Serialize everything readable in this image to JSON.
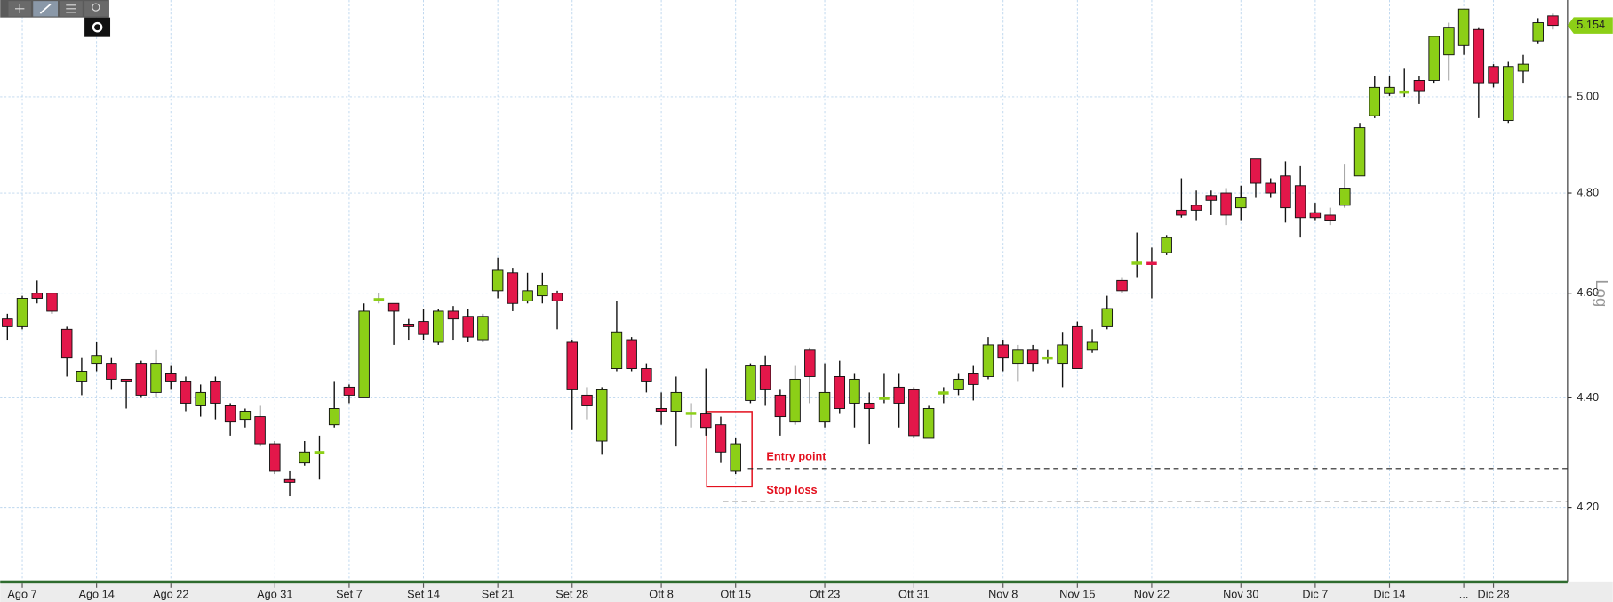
{
  "chart_data": {
    "type": "candlestick",
    "log_scale": true,
    "grid": true,
    "y_axis_label": "Log",
    "up_color": "#8ccf17",
    "down_color": "#e3174a",
    "ylim": [
      4.07,
      5.21
    ],
    "yticks": [
      {
        "value": 4.2,
        "label": "4.20"
      },
      {
        "value": 4.4,
        "label": "4.40"
      },
      {
        "value": 4.6,
        "label": "4.60"
      },
      {
        "value": 4.8,
        "label": "4.80"
      },
      {
        "value": 5.0,
        "label": "5.00"
      }
    ],
    "last_price": 5.154,
    "annotations": [
      {
        "text": "Entry point",
        "value": 4.27
      },
      {
        "text": "Stop loss",
        "value": 4.21
      }
    ],
    "categories": [
      null,
      "Ago 7",
      null,
      null,
      null,
      null,
      "Ago 14",
      null,
      null,
      null,
      null,
      "Ago 22",
      null,
      null,
      null,
      null,
      null,
      null,
      "Ago 31",
      null,
      null,
      null,
      null,
      "Set 7",
      null,
      null,
      null,
      null,
      "Set 14",
      null,
      null,
      null,
      null,
      "Set 21",
      null,
      null,
      null,
      null,
      "Set 28",
      null,
      null,
      null,
      null,
      null,
      "Ott 8",
      null,
      null,
      null,
      null,
      "Ott 15",
      null,
      null,
      null,
      null,
      null,
      "Ott 23",
      null,
      null,
      null,
      null,
      null,
      "Ott 31",
      null,
      null,
      null,
      null,
      null,
      "Nov 8",
      null,
      null,
      null,
      null,
      "Nov 15",
      null,
      null,
      null,
      null,
      "Nov 22",
      null,
      null,
      null,
      null,
      null,
      "Nov 30",
      null,
      null,
      null,
      null,
      "Dic 7",
      null,
      null,
      null,
      null,
      "Dic 14",
      null,
      null,
      null,
      null,
      "...",
      null,
      "Dic 28",
      null,
      null,
      null,
      null
    ],
    "open": [
      4.55,
      4.535,
      4.6,
      4.6,
      4.53,
      4.43,
      4.465,
      4.465,
      4.435,
      4.465,
      4.41,
      4.445,
      4.43,
      4.385,
      4.43,
      4.385,
      4.36,
      4.365,
      4.315,
      4.25,
      4.28,
      4.298,
      4.35,
      4.42,
      4.4,
      4.585,
      4.58,
      4.54,
      4.545,
      4.505,
      4.565,
      4.555,
      4.51,
      4.605,
      4.64,
      4.585,
      4.595,
      4.6,
      4.505,
      4.405,
      4.32,
      4.455,
      4.51,
      4.455,
      4.38,
      4.375,
      4.37,
      4.37,
      4.35,
      4.265,
      4.395,
      4.46,
      4.405,
      4.355,
      4.49,
      4.355,
      4.44,
      4.39,
      4.39,
      4.398,
      4.42,
      4.415,
      4.325,
      4.408,
      4.415,
      4.445,
      4.44,
      4.5,
      4.465,
      4.49,
      4.474,
      4.465,
      4.535,
      4.49,
      4.535,
      4.625,
      4.658,
      4.66,
      4.68,
      4.765,
      4.775,
      4.795,
      4.8,
      4.77,
      4.87,
      4.82,
      4.835,
      4.815,
      4.76,
      4.755,
      4.775,
      4.835,
      4.96,
      5.007,
      5.009,
      5.035,
      5.035,
      5.09,
      5.11,
      5.145,
      5.065,
      4.95,
      5.055,
      5.12,
      5.175
    ],
    "high": [
      4.56,
      4.595,
      4.625,
      4.6,
      4.535,
      4.475,
      4.505,
      4.475,
      4.435,
      4.47,
      4.49,
      4.46,
      4.44,
      4.425,
      4.44,
      4.39,
      4.38,
      4.385,
      4.32,
      4.265,
      4.32,
      4.33,
      4.43,
      4.425,
      4.58,
      4.6,
      4.58,
      4.55,
      4.57,
      4.57,
      4.575,
      4.57,
      4.56,
      4.67,
      4.65,
      4.64,
      4.64,
      4.605,
      4.51,
      4.42,
      4.42,
      4.585,
      4.515,
      4.465,
      4.41,
      4.44,
      4.39,
      4.455,
      4.365,
      4.325,
      4.465,
      4.48,
      4.415,
      4.46,
      4.495,
      4.465,
      4.47,
      4.445,
      4.41,
      4.445,
      4.445,
      4.42,
      4.385,
      4.42,
      4.445,
      4.46,
      4.515,
      4.51,
      4.5,
      4.5,
      4.49,
      4.525,
      4.545,
      4.53,
      4.595,
      4.63,
      4.72,
      4.69,
      4.715,
      4.83,
      4.805,
      4.805,
      4.81,
      4.815,
      4.87,
      4.83,
      4.865,
      4.855,
      4.78,
      4.77,
      4.86,
      4.945,
      5.045,
      5.045,
      5.06,
      5.045,
      5.13,
      5.16,
      5.19,
      5.15,
      5.07,
      5.075,
      5.09,
      5.17,
      5.18
    ],
    "low": [
      4.51,
      4.53,
      4.58,
      4.56,
      4.44,
      4.405,
      4.45,
      4.415,
      4.38,
      4.4,
      4.4,
      4.415,
      4.375,
      4.365,
      4.36,
      4.33,
      4.345,
      4.31,
      4.26,
      4.22,
      4.275,
      4.25,
      4.345,
      4.39,
      4.4,
      4.58,
      4.5,
      4.51,
      4.51,
      4.5,
      4.51,
      4.505,
      4.505,
      4.59,
      4.565,
      4.58,
      4.58,
      4.53,
      4.34,
      4.36,
      4.295,
      4.45,
      4.45,
      4.41,
      4.35,
      4.31,
      4.345,
      4.33,
      4.28,
      4.26,
      4.39,
      4.385,
      4.33,
      4.35,
      4.39,
      4.345,
      4.37,
      4.345,
      4.315,
      4.39,
      4.345,
      4.325,
      4.325,
      4.39,
      4.405,
      4.395,
      4.435,
      4.45,
      4.43,
      4.45,
      4.465,
      4.42,
      4.455,
      4.485,
      4.53,
      4.6,
      4.63,
      4.59,
      4.675,
      4.75,
      4.745,
      4.755,
      4.735,
      4.745,
      4.79,
      4.79,
      4.74,
      4.71,
      4.745,
      4.735,
      4.77,
      4.835,
      4.955,
      5.002,
      5.0,
      4.985,
      5.03,
      5.035,
      5.09,
      4.955,
      5.02,
      4.945,
      5.03,
      5.115,
      5.145
    ],
    "close": [
      4.535,
      4.59,
      4.59,
      4.565,
      4.475,
      4.45,
      4.48,
      4.435,
      4.43,
      4.405,
      4.465,
      4.43,
      4.39,
      4.41,
      4.39,
      4.355,
      4.375,
      4.315,
      4.265,
      4.245,
      4.3,
      4.3,
      4.38,
      4.405,
      4.565,
      4.59,
      4.565,
      4.535,
      4.52,
      4.565,
      4.55,
      4.515,
      4.555,
      4.645,
      4.58,
      4.605,
      4.615,
      4.585,
      4.415,
      4.385,
      4.415,
      4.525,
      4.455,
      4.43,
      4.375,
      4.41,
      4.372,
      4.345,
      4.3,
      4.315,
      4.46,
      4.415,
      4.365,
      4.435,
      4.44,
      4.41,
      4.38,
      4.435,
      4.38,
      4.4,
      4.39,
      4.33,
      4.38,
      4.41,
      4.435,
      4.425,
      4.5,
      4.475,
      4.49,
      4.465,
      4.476,
      4.5,
      4.455,
      4.505,
      4.57,
      4.605,
      4.66,
      4.657,
      4.71,
      4.755,
      4.765,
      4.785,
      4.755,
      4.79,
      4.82,
      4.8,
      4.77,
      4.75,
      4.75,
      4.745,
      4.81,
      4.935,
      5.02,
      5.02,
      5.011,
      5.013,
      5.13,
      5.15,
      5.19,
      5.03,
      5.03,
      5.065,
      5.07,
      5.16,
      5.154
    ]
  }
}
